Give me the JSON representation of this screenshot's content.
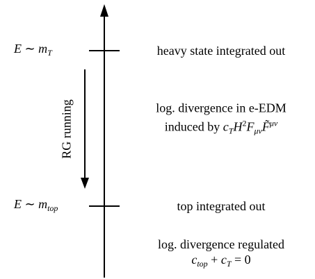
{
  "axis_label": "RG running",
  "scales": [
    {
      "label": [
        {
          "text": "E",
          "math": true
        },
        {
          "text": " ∼ "
        },
        {
          "text": "m",
          "math": true
        },
        {
          "text": "T",
          "math": true,
          "pos": "sub"
        }
      ],
      "note": "heavy state integrated out"
    },
    {
      "label": [
        {
          "text": "E",
          "math": true
        },
        {
          "text": " ∼ "
        },
        {
          "text": "m",
          "math": true
        },
        {
          "text": "top",
          "math": true,
          "pos": "sub"
        }
      ],
      "note": "top integrated out"
    }
  ],
  "regions": [
    {
      "lines": [
        [
          {
            "text": "log. divergence in e-EDM"
          }
        ],
        [
          {
            "text": "induced by "
          },
          {
            "text": "c",
            "math": true
          },
          {
            "text": "T",
            "math": true,
            "pos": "sub"
          },
          {
            "text": "H",
            "math": true
          },
          {
            "text": "2",
            "pos": "sup"
          },
          {
            "text": "F",
            "math": true
          },
          {
            "text": "μν",
            "math": true,
            "pos": "sub"
          },
          {
            "text": "F̃",
            "math": true
          },
          {
            "text": "μν",
            "math": true,
            "pos": "sup"
          }
        ]
      ]
    },
    {
      "lines": [
        [
          {
            "text": "log. divergence regulated"
          }
        ],
        [
          {
            "text": "c",
            "math": true
          },
          {
            "text": "top",
            "math": true,
            "pos": "sub"
          },
          {
            "text": " + "
          },
          {
            "text": "c",
            "math": true
          },
          {
            "text": "T",
            "math": true,
            "pos": "sub"
          },
          {
            "text": " = 0"
          }
        ]
      ]
    }
  ]
}
